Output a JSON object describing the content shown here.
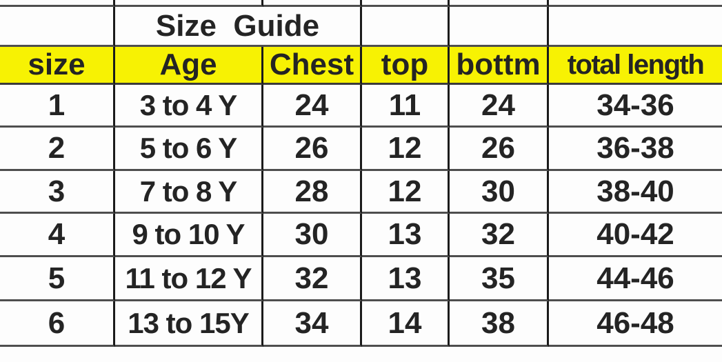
{
  "title": "Size  Guide",
  "table": {
    "headers": [
      "size",
      "Age",
      "Chest",
      "top",
      "bottm",
      "total length"
    ],
    "rows": [
      [
        "1",
        "3 to 4 Y",
        "24",
        "11",
        "24",
        "34-36"
      ],
      [
        "2",
        "5 to 6 Y",
        "26",
        "12",
        "26",
        "36-38"
      ],
      [
        "3",
        "7 to 8 Y",
        "28",
        "12",
        "30",
        "38-40"
      ],
      [
        "4",
        "9 to 10 Y",
        "30",
        "13",
        "32",
        "40-42"
      ],
      [
        "5",
        "11 to 12 Y",
        "32",
        "13",
        "35",
        "44-46"
      ],
      [
        "6",
        "13 to 15Y",
        "34",
        "14",
        "38",
        "46-48"
      ]
    ]
  },
  "colors": {
    "header_background": "#f7f203",
    "text": "#242424",
    "row_line": "#4e4e4e",
    "column_line": "#1b1b1b"
  }
}
